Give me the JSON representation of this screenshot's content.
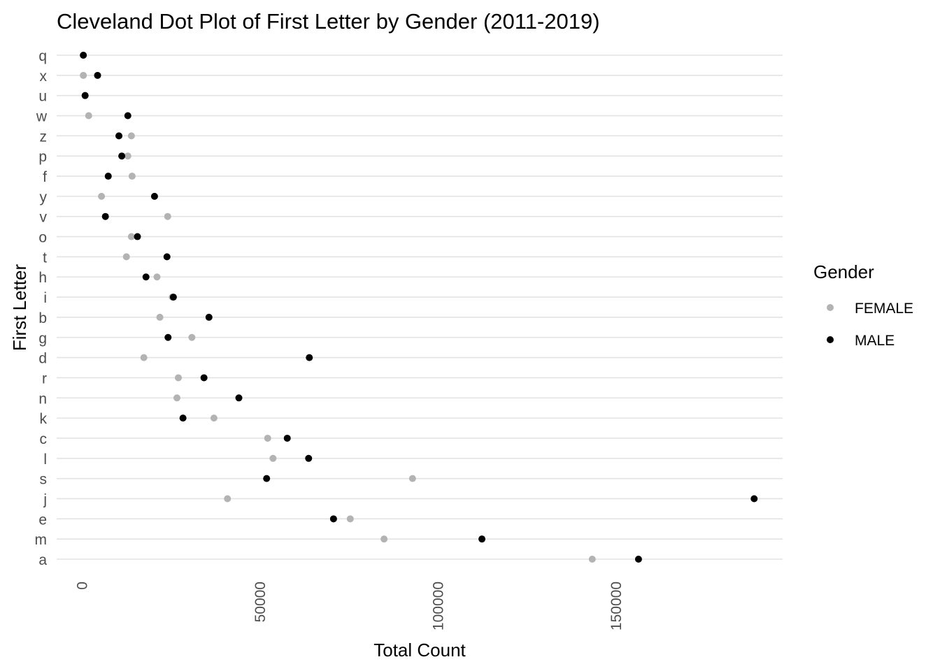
{
  "chart_data": {
    "type": "scatter",
    "title": "Cleveland Dot Plot of First Letter by Gender (2011-2019)",
    "xlabel": "Total Count",
    "ylabel": "First Letter",
    "xlim": [
      -7000,
      197000
    ],
    "xticks": [
      0,
      50000,
      100000,
      150000
    ],
    "tick_labels": [
      "0",
      "50000",
      "100000",
      "150000"
    ],
    "x_tick_label_rotation": "vertical",
    "categories": [
      "q",
      "x",
      "u",
      "w",
      "z",
      "p",
      "f",
      "y",
      "v",
      "o",
      "t",
      "h",
      "i",
      "b",
      "g",
      "d",
      "r",
      "n",
      "k",
      "c",
      "l",
      "s",
      "j",
      "e",
      "m",
      "a"
    ],
    "series": [
      {
        "name": "FEMALE",
        "color": "#b3b3b3",
        "values": [
          500,
          500,
          1000,
          2000,
          14000,
          13000,
          14200,
          5600,
          24200,
          14000,
          12600,
          21200,
          25500,
          22000,
          31000,
          17500,
          27200,
          26800,
          37200,
          52300,
          53800,
          93000,
          41000,
          75500,
          85000,
          143500
        ]
      },
      {
        "name": "MALE",
        "color": "#000000",
        "values": [
          500,
          4500,
          1000,
          13000,
          10500,
          11300,
          7500,
          20500,
          6700,
          15700,
          24000,
          18100,
          25800,
          35800,
          24300,
          64000,
          34400,
          44200,
          28500,
          57800,
          63800,
          52000,
          189000,
          70800,
          112500,
          156500
        ]
      }
    ],
    "grid": "horizontal major lines",
    "legend": {
      "title": "Gender",
      "position": "right",
      "entries": [
        "FEMALE",
        "MALE"
      ]
    }
  }
}
